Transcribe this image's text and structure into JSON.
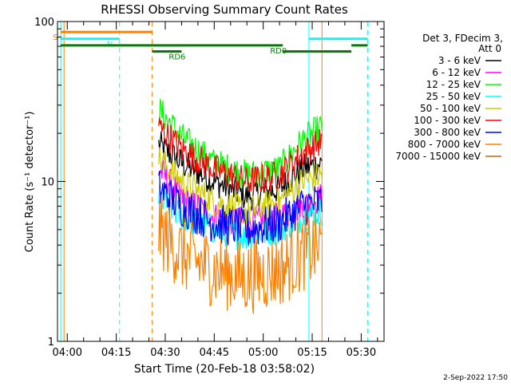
{
  "chart_data": {
    "type": "line",
    "title": "RHESSI Observing Summary Count Rates",
    "xlabel": "Start Time (20-Feb-18 03:58:02)",
    "ylabel": "Count Rate (s⁻¹ detector⁻¹)",
    "ylog": true,
    "ylim": [
      1,
      100
    ],
    "xlim": [
      "03:57",
      "05:37"
    ],
    "y_ticks": [
      "1",
      "10",
      "100"
    ],
    "x_ticks": [
      "04:00",
      "04:15",
      "04:30",
      "04:45",
      "05:00",
      "05:15",
      "05:30"
    ],
    "legend_header": [
      "Det 3, FDecim 3,",
      "Att 0"
    ],
    "series": [
      {
        "name": "3 - 6 keV",
        "color": "#000000",
        "x": [
          "04:28",
          "04:35",
          "04:45",
          "04:55",
          "05:05",
          "05:12",
          "05:18"
        ],
        "y": [
          17,
          13,
          10,
          8,
          9,
          12,
          13
        ]
      },
      {
        "name": "6 - 12 keV",
        "color": "#ff00ff",
        "x": [
          "04:28",
          "04:35",
          "04:45",
          "04:55",
          "05:05",
          "05:12",
          "05:18"
        ],
        "y": [
          12,
          8,
          6,
          5.5,
          6,
          7,
          8
        ]
      },
      {
        "name": "12 - 25 keV",
        "color": "#00ff00",
        "x": [
          "04:28",
          "04:35",
          "04:45",
          "04:55",
          "05:05",
          "05:12",
          "05:18"
        ],
        "y": [
          28,
          19,
          13,
          11,
          12,
          18,
          22
        ]
      },
      {
        "name": "25 - 50 keV",
        "color": "#00ffff",
        "x": [
          "04:28",
          "04:35",
          "04:45",
          "04:55",
          "05:05",
          "05:12",
          "05:18"
        ],
        "y": [
          8,
          6,
          5,
          4.5,
          5,
          6,
          6.5
        ]
      },
      {
        "name": "50 - 100 keV",
        "color": "#cccc00",
        "x": [
          "04:28",
          "04:35",
          "04:45",
          "04:55",
          "05:05",
          "05:12",
          "05:18"
        ],
        "y": [
          14,
          10,
          7.5,
          6.5,
          7.5,
          10,
          11
        ]
      },
      {
        "name": "100 - 300 keV",
        "color": "#ff0000",
        "x": [
          "04:28",
          "04:35",
          "04:45",
          "04:55",
          "05:05",
          "05:12",
          "05:18"
        ],
        "y": [
          22,
          16,
          12,
          10,
          11,
          15,
          18
        ]
      },
      {
        "name": "300 - 800 keV",
        "color": "#0000ff",
        "x": [
          "04:28",
          "04:35",
          "04:45",
          "04:55",
          "05:05",
          "05:12",
          "05:18"
        ],
        "y": [
          9,
          7,
          5.5,
          5,
          5.5,
          7,
          7.5
        ]
      },
      {
        "name": "800 - 7000 keV",
        "color": "#ff8000",
        "x": [
          "04:28",
          "04:35",
          "04:45",
          "04:55",
          "05:05",
          "05:12",
          "05:18"
        ],
        "y": [
          5,
          3.5,
          2.8,
          2.5,
          2.8,
          3.5,
          4
        ]
      },
      {
        "name": "7000 - 15000 keV",
        "color": "#b07000",
        "x": [],
        "y": []
      }
    ],
    "markers": [
      {
        "label": "S",
        "color": "#ff8000",
        "x0": "03:58",
        "x1": "04:26",
        "level": 86
      },
      {
        "label": "N",
        "color": "#00ffff",
        "x0": "03:58",
        "x1": "04:16",
        "level": 78
      },
      {
        "label": "",
        "color": "#00ffff",
        "x0": "05:14",
        "x1": "05:32",
        "level": 78
      },
      {
        "label": "RD0",
        "color": "#008000",
        "x0": "03:58",
        "x1": "05:06",
        "level": 71
      },
      {
        "label": "",
        "color": "#008000",
        "x0": "05:27",
        "x1": "05:32",
        "level": 71
      },
      {
        "label": "RD6",
        "color": "#008000",
        "x0": "04:26",
        "x1": "04:35",
        "level": 65
      },
      {
        "label": "",
        "color": "#008000",
        "x0": "05:06",
        "x1": "05:27",
        "level": 65
      }
    ],
    "vlines": [
      {
        "x": "03:58",
        "color": "#00ffff",
        "style": "solid"
      },
      {
        "x": "03:59",
        "color": "#ff8000",
        "style": "solid"
      },
      {
        "x": "04:16",
        "color": "#00ffff",
        "style": "dashed"
      },
      {
        "x": "04:26",
        "color": "#ff8000",
        "style": "dashed"
      },
      {
        "x": "05:14",
        "color": "#00ffff",
        "style": "solid"
      },
      {
        "x": "05:18",
        "color": "#ff8000",
        "style": "solid"
      },
      {
        "x": "05:32",
        "color": "#00ffff",
        "style": "dashed"
      }
    ],
    "grid": false,
    "legend_position": "right"
  },
  "footer": {
    "timestamp": "2-Sep-2022 17:50"
  }
}
